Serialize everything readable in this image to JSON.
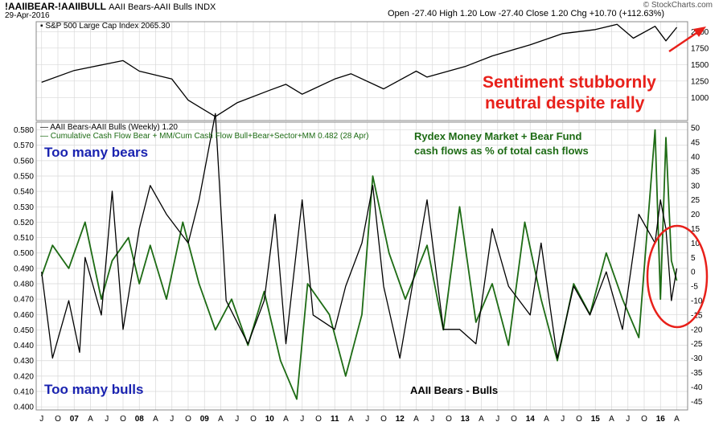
{
  "header": {
    "symbol": "!AAIIBEAR-!AAIIBULL",
    "description": "AAII Bears-AAII Bulls INDX",
    "date": "29-Apr-2016",
    "ohlc": "Open -27.40  High 1.20  Low -27.40  Close 1.20  Chg +10.70 (+112.63%)",
    "brand": "© StockCharts.com"
  },
  "overlay_legend": "S&P 500 Large Cap Index 2065.30",
  "legend1": "AAII Bears-AAII Bulls (Weekly) 1.20",
  "legend2": "Cumulative Cash Flow Bear + MM/Cum Cash Flow Bull+Bear+Sector+MM 0.482 (28 Apr)",
  "annotations": {
    "sentiment": "Sentiment stubbornly neutral despite rally",
    "sentiment_line1": "Sentiment stubbornly",
    "sentiment_line2": "neutral despite rally",
    "rydex_line1": "Rydex Money Market + Bear Fund",
    "rydex_line2": "cash flows as % of total cash flows",
    "too_many_bears": "Too many bears",
    "too_many_bulls": "Too many bulls",
    "aaii_label": "AAII Bears - Bulls"
  },
  "colors": {
    "spx": "#000000",
    "aaii": "#000000",
    "rydex": "#1d6b14",
    "annotation_red": "#e8201a",
    "annotation_blue": "#1a23b0",
    "grid": "#d8d8d8"
  },
  "chart_data": [
    {
      "type": "line",
      "title": "S&P 500 Large Cap Index",
      "series": [
        {
          "name": "S&P 500 Large Cap Index",
          "x": [
            "2006-07",
            "2007-01",
            "2007-07",
            "2007-10",
            "2008-01",
            "2008-07",
            "2008-10",
            "2009-03",
            "2009-07",
            "2010-01",
            "2010-04",
            "2010-07",
            "2011-01",
            "2011-04",
            "2011-10",
            "2012-04",
            "2012-06",
            "2013-01",
            "2013-06",
            "2014-01",
            "2014-07",
            "2015-01",
            "2015-05",
            "2015-08",
            "2015-12",
            "2016-02",
            "2016-04"
          ],
          "values": [
            1230,
            1410,
            1510,
            1560,
            1400,
            1280,
            960,
            710,
            920,
            1110,
            1200,
            1050,
            1280,
            1360,
            1130,
            1400,
            1310,
            1470,
            1630,
            1800,
            1970,
            2030,
            2110,
            1900,
            2080,
            1860,
            2065
          ]
        }
      ],
      "y_ticks": [
        1000,
        1250,
        1500,
        1750,
        2000
      ],
      "ylim": [
        650,
        2150
      ]
    },
    {
      "type": "line",
      "series": [
        {
          "name": "AAII Bears-AAII Bulls (Weekly)",
          "x": [
            "2006-07",
            "2006-09",
            "2006-12",
            "2007-02",
            "2007-03",
            "2007-06",
            "2007-08",
            "2007-10",
            "2008-01",
            "2008-03",
            "2008-06",
            "2008-10",
            "2008-12",
            "2009-03",
            "2009-05",
            "2009-09",
            "2009-12",
            "2010-02",
            "2010-04",
            "2010-07",
            "2010-09",
            "2011-01",
            "2011-03",
            "2011-06",
            "2011-08",
            "2011-10",
            "2012-01",
            "2012-06",
            "2012-09",
            "2012-12",
            "2013-03",
            "2013-06",
            "2013-09",
            "2014-01",
            "2014-03",
            "2014-06",
            "2014-09",
            "2014-12",
            "2015-03",
            "2015-06",
            "2015-09",
            "2015-12",
            "2016-01",
            "2016-02",
            "2016-03",
            "2016-04"
          ],
          "values": [
            0,
            -30,
            -10,
            -28,
            5,
            -15,
            28,
            -20,
            15,
            30,
            20,
            10,
            25,
            55,
            -10,
            -25,
            -10,
            20,
            -25,
            25,
            -15,
            -20,
            -5,
            10,
            30,
            -5,
            -30,
            25,
            -20,
            -20,
            -25,
            15,
            -5,
            -15,
            10,
            -30,
            -5,
            -15,
            0,
            -20,
            20,
            10,
            25,
            15,
            -10,
            1.2
          ]
        },
        {
          "name": "Cumulative Cash Flow Bear + MM/Cum Cash Flow Bull+Bear+Sector+MM",
          "x": [
            "2006-07",
            "2006-09",
            "2006-12",
            "2007-03",
            "2007-06",
            "2007-08",
            "2007-11",
            "2008-01",
            "2008-03",
            "2008-06",
            "2008-09",
            "2008-12",
            "2009-03",
            "2009-06",
            "2009-09",
            "2009-12",
            "2010-03",
            "2010-06",
            "2010-08",
            "2010-12",
            "2011-03",
            "2011-06",
            "2011-08",
            "2011-11",
            "2012-02",
            "2012-06",
            "2012-09",
            "2012-12",
            "2013-03",
            "2013-06",
            "2013-09",
            "2013-12",
            "2014-03",
            "2014-06",
            "2014-09",
            "2014-12",
            "2015-03",
            "2015-06",
            "2015-09",
            "2015-12",
            "2016-01",
            "2016-02",
            "2016-03",
            "2016-04"
          ],
          "values": [
            0.485,
            0.505,
            0.49,
            0.52,
            0.47,
            0.495,
            0.51,
            0.48,
            0.505,
            0.47,
            0.52,
            0.48,
            0.45,
            0.47,
            0.44,
            0.475,
            0.43,
            0.405,
            0.48,
            0.46,
            0.42,
            0.46,
            0.55,
            0.5,
            0.47,
            0.505,
            0.45,
            0.53,
            0.455,
            0.48,
            0.44,
            0.52,
            0.47,
            0.43,
            0.48,
            0.46,
            0.5,
            0.47,
            0.445,
            0.58,
            0.47,
            0.575,
            0.495,
            0.482
          ]
        }
      ],
      "y_ticks_left": [
        0.4,
        0.41,
        0.42,
        0.43,
        0.44,
        0.45,
        0.46,
        0.47,
        0.48,
        0.49,
        0.5,
        0.51,
        0.52,
        0.53,
        0.54,
        0.55,
        0.56,
        0.57,
        0.58
      ],
      "y_ticks_right": [
        -45,
        -40,
        -35,
        -30,
        -25,
        -20,
        -15,
        -10,
        -5,
        0,
        5,
        10,
        15,
        20,
        25,
        30,
        35,
        40,
        45,
        50
      ],
      "ylim_left": [
        0.398,
        0.585
      ],
      "ylim_right": [
        -48,
        52
      ]
    }
  ],
  "x_ticks": [
    {
      "label": "J",
      "date": "2006-07"
    },
    {
      "label": "O",
      "date": "2006-10"
    },
    {
      "label": "07",
      "date": "2007-01"
    },
    {
      "label": "A",
      "date": "2007-04"
    },
    {
      "label": "J",
      "date": "2007-07"
    },
    {
      "label": "O",
      "date": "2007-10"
    },
    {
      "label": "08",
      "date": "2008-01"
    },
    {
      "label": "A",
      "date": "2008-04"
    },
    {
      "label": "J",
      "date": "2008-07"
    },
    {
      "label": "O",
      "date": "2008-10"
    },
    {
      "label": "09",
      "date": "2009-01"
    },
    {
      "label": "A",
      "date": "2009-04"
    },
    {
      "label": "J",
      "date": "2009-07"
    },
    {
      "label": "O",
      "date": "2009-10"
    },
    {
      "label": "10",
      "date": "2010-01"
    },
    {
      "label": "A",
      "date": "2010-04"
    },
    {
      "label": "J",
      "date": "2010-07"
    },
    {
      "label": "O",
      "date": "2010-10"
    },
    {
      "label": "11",
      "date": "2011-01"
    },
    {
      "label": "A",
      "date": "2011-04"
    },
    {
      "label": "J",
      "date": "2011-07"
    },
    {
      "label": "O",
      "date": "2011-10"
    },
    {
      "label": "12",
      "date": "2012-01"
    },
    {
      "label": "A",
      "date": "2012-04"
    },
    {
      "label": "J",
      "date": "2012-07"
    },
    {
      "label": "O",
      "date": "2012-10"
    },
    {
      "label": "13",
      "date": "2013-01"
    },
    {
      "label": "A",
      "date": "2013-04"
    },
    {
      "label": "J",
      "date": "2013-07"
    },
    {
      "label": "O",
      "date": "2013-10"
    },
    {
      "label": "14",
      "date": "2014-01"
    },
    {
      "label": "A",
      "date": "2014-04"
    },
    {
      "label": "J",
      "date": "2014-07"
    },
    {
      "label": "O",
      "date": "2014-10"
    },
    {
      "label": "15",
      "date": "2015-01"
    },
    {
      "label": "A",
      "date": "2015-04"
    },
    {
      "label": "J",
      "date": "2015-07"
    },
    {
      "label": "O",
      "date": "2015-10"
    },
    {
      "label": "16",
      "date": "2016-01"
    },
    {
      "label": "A",
      "date": "2016-04"
    }
  ]
}
